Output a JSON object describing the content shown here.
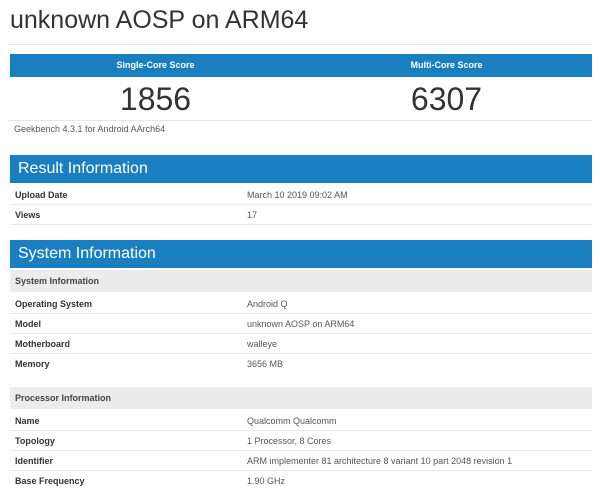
{
  "title": "unknown AOSP on ARM64",
  "scores": {
    "single_label": "Single-Core Score",
    "multi_label": "Multi-Core Score",
    "single": "1856",
    "multi": "6307"
  },
  "version": "Geekbench 4.3.1 for Android AArch64",
  "result": {
    "header": "Result Information",
    "rows": [
      {
        "k": "Upload Date",
        "v": "March 10 2019 09:02 AM"
      },
      {
        "k": "Views",
        "v": "17"
      }
    ]
  },
  "system": {
    "header": "System Information",
    "sub1": "System Information",
    "rows1": [
      {
        "k": "Operating System",
        "v": "Android Q"
      },
      {
        "k": "Model",
        "v": "unknown AOSP on ARM64"
      },
      {
        "k": "Motherboard",
        "v": "walleye"
      },
      {
        "k": "Memory",
        "v": "3656 MB"
      }
    ],
    "sub2": "Processor Information",
    "rows2": [
      {
        "k": "Name",
        "v": "Qualcomm Qualcomm"
      },
      {
        "k": "Topology",
        "v": "1 Processor, 8 Cores"
      },
      {
        "k": "Identifier",
        "v": "ARM implementer 81 architecture 8 variant 10 part 2048 revision 1"
      },
      {
        "k": "Base Frequency",
        "v": "1.90 GHz"
      }
    ]
  },
  "colors": {
    "accent": "#1a7fc1"
  }
}
